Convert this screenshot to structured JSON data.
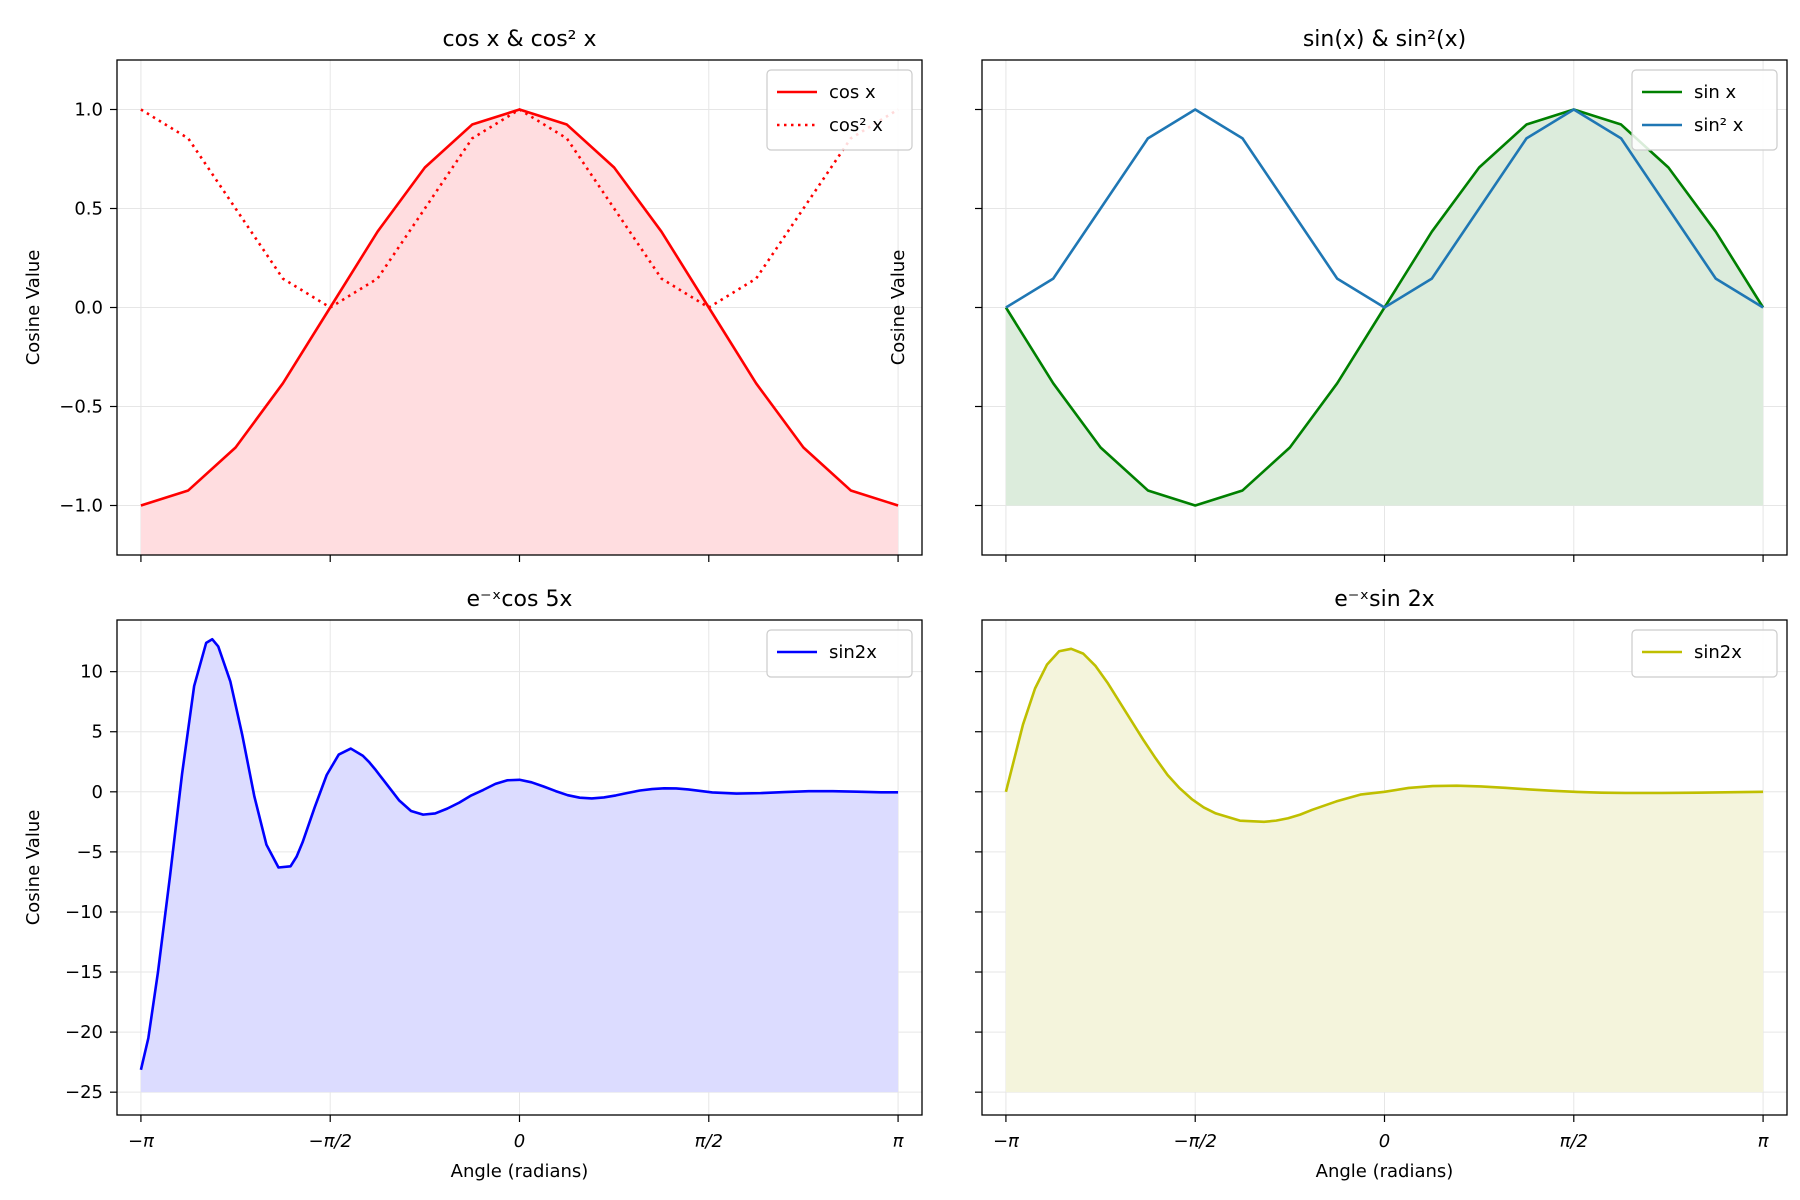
{
  "chart_data": [
    {
      "type": "line",
      "title": "cos x & cos² x",
      "xlabel": "",
      "ylabel": "Cosine Value",
      "xlim": [
        -3.3401,
        3.3401
      ],
      "ylim": [
        -1.25,
        1.25
      ],
      "xticks": [
        -3.14159,
        -1.5708,
        0,
        1.5708,
        3.14159
      ],
      "xtick_labels": [],
      "yticks": [
        -1.0,
        -0.5,
        0.0,
        0.5,
        1.0
      ],
      "ytick_labels": [
        "−1.0",
        "−0.5",
        "0.0",
        "0.5",
        "1.0"
      ],
      "grid": true,
      "legend_position": "top-right",
      "fill": {
        "series": "cos x",
        "to": "bottom",
        "color": "#ffdde0"
      },
      "series": [
        {
          "name": "cos x",
          "color": "#ff0000",
          "style": "solid",
          "x": [
            -3.1416,
            -2.7489,
            -2.3562,
            -1.9635,
            -1.5708,
            -1.1781,
            -0.7854,
            -0.3927,
            0.0,
            0.3927,
            0.7854,
            1.1781,
            1.5708,
            1.9635,
            2.3562,
            2.7489,
            3.1416
          ],
          "y": [
            -1.0,
            -0.924,
            -0.707,
            -0.383,
            0.0,
            0.383,
            0.707,
            0.924,
            1.0,
            0.924,
            0.707,
            0.383,
            0.0,
            -0.383,
            -0.707,
            -0.924,
            -1.0
          ]
        },
        {
          "name": "cos² x",
          "color": "#ff0000",
          "style": "dotted",
          "x": [
            -3.1416,
            -2.7489,
            -2.3562,
            -1.9635,
            -1.5708,
            -1.1781,
            -0.7854,
            -0.3927,
            0.0,
            0.3927,
            0.7854,
            1.1781,
            1.5708,
            1.9635,
            2.3562,
            2.7489,
            3.1416
          ],
          "y": [
            1.0,
            0.854,
            0.5,
            0.146,
            0.0,
            0.146,
            0.5,
            0.854,
            1.0,
            0.854,
            0.5,
            0.146,
            0.0,
            0.146,
            0.5,
            0.854,
            1.0
          ]
        }
      ]
    },
    {
      "type": "line",
      "title": "sin(x) & sin²(x)",
      "xlabel": "",
      "ylabel": "Cosine Value",
      "xlim": [
        -3.3401,
        3.3401
      ],
      "ylim": [
        -1.25,
        1.25
      ],
      "xticks": [
        -3.14159,
        -1.5708,
        0,
        1.5708,
        3.14159
      ],
      "xtick_labels": [],
      "yticks": [
        -1.0,
        -0.5,
        0.0,
        0.5,
        1.0
      ],
      "ytick_labels": [],
      "grid": true,
      "legend_position": "top-right",
      "fill": {
        "series": "sin x",
        "to": -1.0,
        "color": "#dcecdc"
      },
      "series": [
        {
          "name": "sin x",
          "color": "#008000",
          "style": "solid",
          "x": [
            -3.1416,
            -2.7489,
            -2.3562,
            -1.9635,
            -1.5708,
            -1.1781,
            -0.7854,
            -0.3927,
            0.0,
            0.3927,
            0.7854,
            1.1781,
            1.5708,
            1.9635,
            2.3562,
            2.7489,
            3.1416
          ],
          "y": [
            0.0,
            -0.383,
            -0.707,
            -0.924,
            -1.0,
            -0.924,
            -0.707,
            -0.383,
            0.0,
            0.383,
            0.707,
            0.924,
            1.0,
            0.924,
            0.707,
            0.383,
            0.0
          ]
        },
        {
          "name": "sin² x",
          "color": "#1f77b4",
          "style": "solid",
          "x": [
            -3.1416,
            -2.7489,
            -2.3562,
            -1.9635,
            -1.5708,
            -1.1781,
            -0.7854,
            -0.3927,
            0.0,
            0.3927,
            0.7854,
            1.1781,
            1.5708,
            1.9635,
            2.3562,
            2.7489,
            3.1416
          ],
          "y": [
            0.0,
            0.146,
            0.5,
            0.854,
            1.0,
            0.854,
            0.5,
            0.146,
            0.0,
            0.146,
            0.5,
            0.854,
            1.0,
            0.854,
            0.5,
            0.146,
            0.0
          ]
        }
      ]
    },
    {
      "type": "line",
      "title": "e⁻ˣcos 5x",
      "xlabel": "Angle (radians)",
      "ylabel": "Cosine Value",
      "xlim": [
        -3.3401,
        3.3401
      ],
      "ylim": [
        -26.9,
        14.3
      ],
      "xticks": [
        -3.14159,
        -1.5708,
        0,
        1.5708,
        3.14159
      ],
      "xtick_labels": [
        "−π",
        "−π/2",
        "0",
        "π/2",
        "π"
      ],
      "yticks": [
        -25,
        -20,
        -15,
        -10,
        -5,
        0,
        5,
        10
      ],
      "ytick_labels": [
        "−25",
        "−20",
        "−15",
        "−10",
        "−5",
        "0",
        "5",
        "10"
      ],
      "grid": true,
      "legend_position": "top-right",
      "fill": {
        "series": "sin2x",
        "to": -25,
        "color": "#dcdcff"
      },
      "series": [
        {
          "name": "sin2x",
          "color": "#0000ff",
          "style": "solid",
          "x": [
            -3.1416,
            -3.08,
            -3.0,
            -2.9,
            -2.8,
            -2.7,
            -2.6,
            -2.55,
            -2.5,
            -2.4,
            -2.3,
            -2.2,
            -2.1,
            -2.0,
            -1.9,
            -1.85,
            -1.8,
            -1.7,
            -1.6,
            -1.5,
            -1.4,
            -1.3,
            -1.25,
            -1.2,
            -1.1,
            -1.0,
            -0.9,
            -0.8,
            -0.7,
            -0.6,
            -0.5,
            -0.4,
            -0.3,
            -0.2,
            -0.1,
            0.0,
            0.1,
            0.2,
            0.3,
            0.4,
            0.5,
            0.6,
            0.7,
            0.8,
            0.9,
            1.0,
            1.1,
            1.2,
            1.3,
            1.4,
            1.5,
            1.6,
            1.8,
            2.0,
            2.2,
            2.4,
            2.6,
            2.8,
            3.0,
            3.1416
          ],
          "y": [
            -23.14,
            -20.5,
            -15.0,
            -7.0,
            1.5,
            8.8,
            12.4,
            12.7,
            12.1,
            9.2,
            4.7,
            -0.4,
            -4.4,
            -6.3,
            -6.2,
            -5.4,
            -4.2,
            -1.3,
            1.4,
            3.1,
            3.6,
            3.0,
            2.5,
            1.9,
            0.6,
            -0.7,
            -1.6,
            -1.9,
            -1.8,
            -1.4,
            -0.9,
            -0.3,
            0.16,
            0.66,
            0.96,
            1.0,
            0.79,
            0.44,
            0.06,
            -0.28,
            -0.49,
            -0.55,
            -0.47,
            -0.3,
            -0.09,
            0.11,
            0.23,
            0.29,
            0.28,
            0.2,
            0.07,
            -0.05,
            -0.15,
            -0.11,
            -0.02,
            0.05,
            0.05,
            0.01,
            -0.04,
            -0.04
          ]
        }
      ]
    },
    {
      "type": "line",
      "title": "e⁻ˣsin 2x",
      "xlabel": "Angle (radians)",
      "ylabel": "",
      "xlim": [
        -3.3401,
        3.3401
      ],
      "ylim": [
        -26.9,
        14.3
      ],
      "xticks": [
        -3.14159,
        -1.5708,
        0,
        1.5708,
        3.14159
      ],
      "xtick_labels": [
        "−π",
        "−π/2",
        "0",
        "π/2",
        "π"
      ],
      "yticks": [
        -25,
        -20,
        -15,
        -10,
        -5,
        0,
        5,
        10
      ],
      "ytick_labels": [],
      "grid": true,
      "legend_position": "top-right",
      "fill": {
        "series": "sin2x",
        "to": -25,
        "color": "#f4f4dc"
      },
      "series": [
        {
          "name": "sin2x",
          "color": "#bfbf00",
          "style": "solid",
          "x": [
            -3.1416,
            -3.0,
            -2.9,
            -2.8,
            -2.7,
            -2.6,
            -2.5,
            -2.4,
            -2.3,
            -2.2,
            -2.1,
            -2.0,
            -1.9,
            -1.8,
            -1.7,
            -1.6,
            -1.5,
            -1.4,
            -1.2,
            -1.0,
            -0.9,
            -0.8,
            -0.7,
            -0.6,
            -0.4,
            -0.2,
            0.0,
            0.2,
            0.4,
            0.6,
            0.8,
            1.0,
            1.2,
            1.4,
            1.6,
            1.8,
            2.0,
            2.3,
            2.6,
            2.9,
            3.1416
          ],
          "y": [
            0.0,
            5.6,
            8.6,
            10.6,
            11.7,
            11.9,
            11.5,
            10.5,
            9.1,
            7.5,
            5.9,
            4.3,
            2.8,
            1.4,
            0.3,
            -0.6,
            -1.3,
            -1.8,
            -2.4,
            -2.5,
            -2.4,
            -2.2,
            -1.9,
            -1.5,
            -0.8,
            -0.23,
            0.0,
            0.32,
            0.48,
            0.51,
            0.45,
            0.33,
            0.2,
            0.08,
            -0.01,
            -0.07,
            -0.1,
            -0.1,
            -0.07,
            -0.03,
            0.0
          ]
        }
      ]
    }
  ]
}
